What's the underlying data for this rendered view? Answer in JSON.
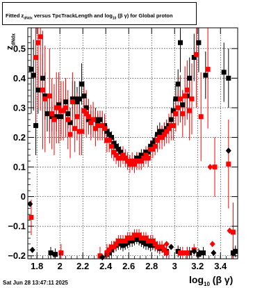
{
  "title": {
    "prefix": "Fitted  z",
    "sub": "dNdx",
    "middle": "  versus TpcTrackLength and log",
    "sub2": "10",
    "suffix": " (β  γ)  for Global proton"
  },
  "axis": {
    "y_main": "z",
    "y_sub": "dNdx",
    "x_main": "log",
    "x_sub": "10",
    "x_suffix": "(β γ)"
  },
  "timestamp": "Sat Jun 28 13:47:11 2025",
  "chart_data": {
    "type": "scatter",
    "title": "Fitted  z_dNdx  versus TpcTrackLength and log_10 (β γ)  for Global proton",
    "xlabel": "log_10 (β γ)",
    "ylabel": "z_dNdx",
    "xlim": [
      1.72,
      3.55
    ],
    "ylim": [
      -0.21,
      0.57
    ],
    "xticks": [
      1.8,
      2.0,
      2.2,
      2.4,
      2.6,
      2.8,
      3.0,
      3.2,
      3.4
    ],
    "xtick_labels": [
      "1.8",
      "2",
      "2.2",
      "2.4",
      "2.6",
      "2.8",
      "3",
      "3.2",
      "3.4"
    ],
    "yticks": [
      -0.2,
      -0.1,
      0,
      0.1,
      0.2,
      0.3,
      0.4,
      0.5
    ],
    "ytick_labels": [
      "−0.2",
      "−0.1",
      "0",
      "0.1",
      "0.2",
      "0.3",
      "0.4",
      "0.5"
    ],
    "grid": true,
    "series": [
      {
        "marker": "square",
        "color": "#000000",
        "points": [
          [
            1.75,
            0.43,
            0.15
          ],
          [
            1.77,
            0.41,
            0.12
          ],
          [
            1.79,
            0.24,
            0.1
          ],
          [
            1.81,
            0.36,
            0.08
          ],
          [
            1.85,
            0.4,
            0.08
          ],
          [
            1.87,
            0.34,
            0.08
          ],
          [
            1.89,
            0.28,
            0.06
          ],
          [
            1.91,
            0.28,
            0.06
          ],
          [
            1.93,
            0.27,
            0.05
          ],
          [
            1.95,
            0.26,
            0.05
          ],
          [
            1.97,
            0.27,
            0.05
          ],
          [
            1.99,
            0.31,
            0.05
          ],
          [
            2.01,
            0.27,
            0.06
          ],
          [
            2.05,
            0.32,
            0.08
          ],
          [
            2.07,
            0.28,
            0.05
          ],
          [
            2.09,
            0.25,
            0.05
          ],
          [
            2.11,
            0.33,
            0.06
          ],
          [
            2.13,
            0.33,
            0.06
          ],
          [
            2.15,
            0.32,
            0.05
          ],
          [
            2.17,
            0.33,
            0.06
          ],
          [
            2.19,
            0.38,
            0.07
          ],
          [
            2.21,
            0.34,
            0.05
          ],
          [
            2.23,
            0.3,
            0.05
          ],
          [
            2.25,
            0.26,
            0.04
          ],
          [
            2.27,
            0.25,
            0.04
          ],
          [
            2.29,
            0.26,
            0.03
          ],
          [
            2.31,
            0.26,
            0.04
          ],
          [
            2.33,
            0.25,
            0.03
          ],
          [
            2.35,
            0.26,
            0.03
          ],
          [
            2.37,
            0.24,
            0.03
          ],
          [
            2.39,
            0.24,
            0.03
          ],
          [
            2.41,
            0.22,
            0.02
          ],
          [
            2.43,
            0.21,
            0.02
          ],
          [
            2.45,
            0.2,
            0.02
          ],
          [
            2.47,
            0.18,
            0.02
          ],
          [
            2.49,
            0.17,
            0.02
          ],
          [
            2.51,
            0.16,
            0.02
          ],
          [
            2.53,
            0.15,
            0.02
          ],
          [
            2.55,
            0.14,
            0.02
          ],
          [
            2.57,
            0.13,
            0.02
          ],
          [
            2.59,
            0.12,
            0.02
          ],
          [
            2.61,
            0.12,
            0.02
          ],
          [
            2.63,
            0.11,
            0.02
          ],
          [
            2.65,
            0.12,
            0.02
          ],
          [
            2.67,
            0.13,
            0.02
          ],
          [
            2.69,
            0.13,
            0.02
          ],
          [
            2.71,
            0.14,
            0.02
          ],
          [
            2.73,
            0.14,
            0.02
          ],
          [
            2.75,
            0.15,
            0.02
          ],
          [
            2.77,
            0.15,
            0.02
          ],
          [
            2.79,
            0.17,
            0.02
          ],
          [
            2.81,
            0.18,
            0.02
          ],
          [
            2.83,
            0.19,
            0.02
          ],
          [
            2.85,
            0.21,
            0.03
          ],
          [
            2.87,
            0.22,
            0.03
          ],
          [
            2.89,
            0.21,
            0.03
          ],
          [
            2.91,
            0.22,
            0.03
          ],
          [
            2.93,
            0.23,
            0.03
          ],
          [
            2.95,
            0.24,
            0.03
          ],
          [
            2.97,
            0.26,
            0.04
          ],
          [
            2.99,
            0.29,
            0.04
          ],
          [
            3.01,
            0.33,
            0.05
          ],
          [
            3.03,
            0.38,
            0.05
          ],
          [
            3.05,
            0.52,
            0.1
          ],
          [
            3.07,
            0.31,
            0.05
          ],
          [
            3.11,
            0.34,
            0.06
          ],
          [
            3.13,
            0.4,
            0.07
          ],
          [
            3.17,
            0.47,
            0.08
          ],
          [
            3.21,
            0.52,
            0.1
          ],
          [
            3.27,
            0.41,
            0.08
          ],
          [
            3.43,
            0.42,
            0.1
          ],
          [
            3.47,
            0.4,
            0.1
          ],
          [
            1.92,
            -0.19,
            0.02
          ],
          [
            1.96,
            -0.195,
            0.02
          ],
          [
            2.41,
            -0.195,
            0.02
          ],
          [
            2.43,
            -0.19,
            0.02
          ],
          [
            2.45,
            -0.18,
            0.02
          ],
          [
            2.47,
            -0.17,
            0.02
          ],
          [
            2.49,
            -0.165,
            0.02
          ],
          [
            2.51,
            -0.16,
            0.02
          ],
          [
            2.53,
            -0.16,
            0.02
          ],
          [
            2.55,
            -0.165,
            0.02
          ],
          [
            2.57,
            -0.16,
            0.02
          ],
          [
            2.59,
            -0.155,
            0.02
          ],
          [
            2.61,
            -0.15,
            0.02
          ],
          [
            2.63,
            -0.15,
            0.02
          ],
          [
            2.65,
            -0.145,
            0.02
          ],
          [
            2.67,
            -0.14,
            0.02
          ],
          [
            2.69,
            -0.145,
            0.02
          ],
          [
            2.71,
            -0.15,
            0.02
          ],
          [
            2.73,
            -0.155,
            0.02
          ],
          [
            2.75,
            -0.16,
            0.02
          ],
          [
            2.77,
            -0.16,
            0.02
          ],
          [
            2.79,
            -0.165,
            0.02
          ],
          [
            2.81,
            -0.16,
            0.02
          ],
          [
            2.83,
            -0.165,
            0.02
          ],
          [
            2.85,
            -0.17,
            0.02
          ],
          [
            2.87,
            -0.175,
            0.02
          ],
          [
            2.89,
            -0.17,
            0.02
          ],
          [
            2.91,
            -0.18,
            0.02
          ],
          [
            2.93,
            -0.185,
            0.02
          ],
          [
            3.03,
            -0.185,
            0.02
          ],
          [
            3.11,
            -0.19,
            0.02
          ],
          [
            3.13,
            -0.19,
            0.02
          ],
          [
            3.21,
            -0.195,
            0.02
          ],
          [
            3.25,
            -0.19,
            0.02
          ],
          [
            3.51,
            -0.19,
            0.02
          ],
          [
            3.53,
            -0.185,
            0.02
          ]
        ]
      },
      {
        "marker": "square",
        "color": "#ff0000",
        "points": [
          [
            1.79,
            0.47,
            0.22
          ],
          [
            1.81,
            0.52,
            0.22
          ],
          [
            1.83,
            0.54,
            0.25
          ],
          [
            1.85,
            0.36,
            0.2
          ],
          [
            1.87,
            0.33,
            0.18
          ],
          [
            1.91,
            0.34,
            0.16
          ],
          [
            1.93,
            0.28,
            0.12
          ],
          [
            1.95,
            0.26,
            0.12
          ],
          [
            1.97,
            0.3,
            0.12
          ],
          [
            1.99,
            0.3,
            0.12
          ],
          [
            2.01,
            0.29,
            0.1
          ],
          [
            2.03,
            0.29,
            0.1
          ],
          [
            2.05,
            0.3,
            0.1
          ],
          [
            2.07,
            0.26,
            0.1
          ],
          [
            2.09,
            0.21,
            0.08
          ],
          [
            2.11,
            0.32,
            0.1
          ],
          [
            2.13,
            0.23,
            0.08
          ],
          [
            2.15,
            0.27,
            0.08
          ],
          [
            2.17,
            0.22,
            0.08
          ],
          [
            2.19,
            0.22,
            0.08
          ],
          [
            2.21,
            0.29,
            0.08
          ],
          [
            2.23,
            0.28,
            0.08
          ],
          [
            2.25,
            0.27,
            0.06
          ],
          [
            2.27,
            0.25,
            0.06
          ],
          [
            2.29,
            0.26,
            0.06
          ],
          [
            2.31,
            0.23,
            0.06
          ],
          [
            2.33,
            0.24,
            0.05
          ],
          [
            2.35,
            0.24,
            0.05
          ],
          [
            2.37,
            0.24,
            0.05
          ],
          [
            2.39,
            0.23,
            0.05
          ],
          [
            2.41,
            0.19,
            0.04
          ],
          [
            2.43,
            0.19,
            0.04
          ],
          [
            2.45,
            0.17,
            0.04
          ],
          [
            2.47,
            0.15,
            0.03
          ],
          [
            2.49,
            0.14,
            0.03
          ],
          [
            2.51,
            0.13,
            0.03
          ],
          [
            2.53,
            0.13,
            0.03
          ],
          [
            2.55,
            0.14,
            0.03
          ],
          [
            2.57,
            0.13,
            0.03
          ],
          [
            2.59,
            0.12,
            0.03
          ],
          [
            2.61,
            0.11,
            0.03
          ],
          [
            2.63,
            0.12,
            0.03
          ],
          [
            2.65,
            0.11,
            0.03
          ],
          [
            2.67,
            0.12,
            0.03
          ],
          [
            2.69,
            0.12,
            0.03
          ],
          [
            2.71,
            0.12,
            0.03
          ],
          [
            2.73,
            0.13,
            0.03
          ],
          [
            2.75,
            0.14,
            0.03
          ],
          [
            2.77,
            0.13,
            0.03
          ],
          [
            2.79,
            0.16,
            0.03
          ],
          [
            2.81,
            0.16,
            0.03
          ],
          [
            2.83,
            0.17,
            0.03
          ],
          [
            2.85,
            0.19,
            0.04
          ],
          [
            2.87,
            0.2,
            0.04
          ],
          [
            2.89,
            0.2,
            0.04
          ],
          [
            2.91,
            0.21,
            0.04
          ],
          [
            2.93,
            0.22,
            0.04
          ],
          [
            2.95,
            0.23,
            0.05
          ],
          [
            2.97,
            0.24,
            0.05
          ],
          [
            2.99,
            0.24,
            0.05
          ],
          [
            3.01,
            0.28,
            0.06
          ],
          [
            3.03,
            0.3,
            0.06
          ],
          [
            3.05,
            0.33,
            0.08
          ],
          [
            3.07,
            0.28,
            0.08
          ],
          [
            3.09,
            0.34,
            0.1
          ],
          [
            3.11,
            0.36,
            0.1
          ],
          [
            3.13,
            0.29,
            0.1
          ],
          [
            3.15,
            0.33,
            0.12
          ],
          [
            3.19,
            0.48,
            0.18
          ],
          [
            3.23,
            0.27,
            0.15
          ],
          [
            3.29,
            0.43,
            0.2
          ],
          [
            3.35,
            0.1,
            0.1
          ],
          [
            3.47,
            0.11,
            0.15
          ],
          [
            3.51,
            -0.12,
            0.1
          ],
          [
            1.75,
            -0.07,
            0.06
          ],
          [
            2.01,
            -0.19,
            0.03
          ],
          [
            2.35,
            -0.2,
            0.03
          ],
          [
            2.41,
            -0.19,
            0.03
          ],
          [
            2.43,
            -0.18,
            0.02
          ],
          [
            2.45,
            -0.17,
            0.02
          ],
          [
            2.47,
            -0.17,
            0.02
          ],
          [
            2.49,
            -0.16,
            0.02
          ],
          [
            2.51,
            -0.15,
            0.02
          ],
          [
            2.53,
            -0.15,
            0.02
          ],
          [
            2.55,
            -0.15,
            0.02
          ],
          [
            2.57,
            -0.15,
            0.02
          ],
          [
            2.59,
            -0.14,
            0.02
          ],
          [
            2.61,
            -0.14,
            0.02
          ],
          [
            2.63,
            -0.14,
            0.02
          ],
          [
            2.65,
            -0.13,
            0.02
          ],
          [
            2.67,
            -0.13,
            0.02
          ],
          [
            2.69,
            -0.13,
            0.02
          ],
          [
            2.71,
            -0.14,
            0.02
          ],
          [
            2.73,
            -0.14,
            0.02
          ],
          [
            2.75,
            -0.14,
            0.02
          ],
          [
            2.77,
            -0.15,
            0.02
          ],
          [
            2.79,
            -0.15,
            0.02
          ],
          [
            2.81,
            -0.15,
            0.02
          ],
          [
            2.83,
            -0.16,
            0.02
          ],
          [
            2.85,
            -0.17,
            0.02
          ],
          [
            2.87,
            -0.17,
            0.02
          ],
          [
            2.89,
            -0.17,
            0.02
          ],
          [
            2.91,
            -0.18,
            0.02
          ],
          [
            2.93,
            -0.19,
            0.02
          ],
          [
            3.05,
            -0.19,
            0.02
          ],
          [
            3.07,
            -0.19,
            0.02
          ],
          [
            3.11,
            -0.19,
            0.02
          ],
          [
            3.17,
            -0.18,
            0.02
          ]
        ]
      },
      {
        "marker": "diamond",
        "color": "#000000",
        "points": [
          [
            1.74,
            -0.025
          ],
          [
            1.76,
            -0.18
          ],
          [
            2.37,
            -0.205
          ],
          [
            2.97,
            -0.17
          ],
          [
            3.17,
            -0.185
          ],
          [
            3.22,
            -0.19
          ],
          [
            3.34,
            -0.19
          ],
          [
            3.47,
            0.155
          ],
          [
            3.53,
            -0.185
          ]
        ]
      },
      {
        "marker": "diamond",
        "color": "#ff0000",
        "points": [
          [
            2.41,
            -0.195
          ],
          [
            2.93,
            -0.16
          ],
          [
            3.31,
            0.1
          ],
          [
            3.33,
            -0.16
          ],
          [
            3.48,
            -0.115
          ]
        ]
      }
    ]
  }
}
